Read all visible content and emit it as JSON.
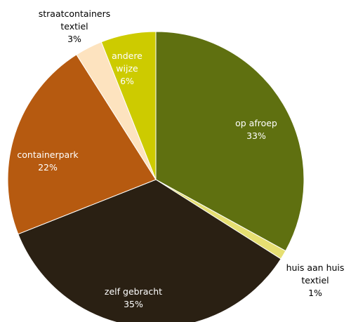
{
  "chart_data": {
    "type": "pie",
    "categories": [
      "op afroep",
      "huis aan huis textiel",
      "zelf gebracht",
      "containerpark",
      "straatcontainers textiel",
      "andere wijze"
    ],
    "values": [
      33,
      1,
      35,
      22,
      3,
      6
    ],
    "value_labels": [
      "33%",
      "1%",
      "35%",
      "22%",
      "3%",
      "6%"
    ],
    "colors": [
      "#5f7010",
      "#e6df72",
      "#2a2013",
      "#b65a10",
      "#fde3bf",
      "#cdcb00"
    ]
  }
}
